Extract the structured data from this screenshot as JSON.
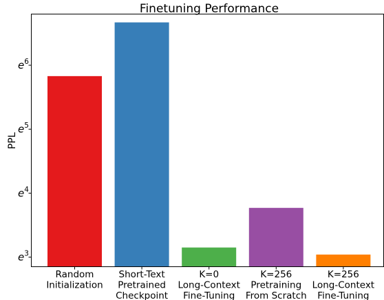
{
  "chart_data": {
    "type": "bar",
    "title": "Finetuning Performance",
    "xlabel": "",
    "ylabel": "PPL",
    "y_scale": "log (natural)",
    "y_ticks": [
      {
        "value": 3,
        "base": "e",
        "exp": "3"
      },
      {
        "value": 4,
        "base": "e",
        "exp": "4"
      },
      {
        "value": 5,
        "base": "e",
        "exp": "5"
      },
      {
        "value": 6,
        "base": "e",
        "exp": "6"
      }
    ],
    "ylim_ln": [
      2.85,
      6.8
    ],
    "categories": [
      [
        "Random",
        "Initialization"
      ],
      [
        "Short-Text",
        "Pretrained",
        "Checkpoint"
      ],
      [
        "K=0",
        "Long-Context",
        "Fine-Tuning"
      ],
      [
        "K=256",
        "Pretraining",
        "From Scratch"
      ],
      [
        "K=256",
        "Long-Context",
        "Fine-Tuning"
      ]
    ],
    "values_ln": [
      5.83,
      6.67,
      3.15,
      3.77,
      3.04
    ],
    "colors": [
      "#e41a1c",
      "#377eb8",
      "#4daf4a",
      "#984ea3",
      "#ff7f00"
    ],
    "grid": false,
    "legend": "none"
  }
}
